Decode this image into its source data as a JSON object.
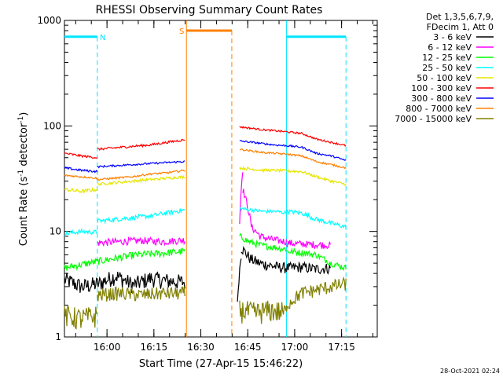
{
  "chart_data": {
    "type": "line",
    "title": "RHESSI Observing Summary Count Rates",
    "xlabel": "Start Time (27-Apr-15 15:46:22)",
    "ylabel_main": "Count Rate (s",
    "ylabel_sup1": "-1",
    "ylabel_mid": " detector",
    "ylabel_sup2": "-1",
    "ylabel_end": ")",
    "yscale": "log",
    "ylim": [
      1,
      1000
    ],
    "xlim_min": [
      0,
      100
    ],
    "x_ticks": [
      {
        "t": 13.6,
        "label": "16:00"
      },
      {
        "t": 28.6,
        "label": "16:15"
      },
      {
        "t": 43.6,
        "label": "16:30"
      },
      {
        "t": 58.6,
        "label": "16:45"
      },
      {
        "t": 73.6,
        "label": "17:00"
      },
      {
        "t": 88.6,
        "label": "17:15"
      }
    ],
    "y_ticks": [
      {
        "v": 1,
        "label": "1"
      },
      {
        "v": 10,
        "label": "10"
      },
      {
        "v": 100,
        "label": "100"
      },
      {
        "v": 1000,
        "label": "1000"
      }
    ],
    "legend_header": [
      "Det 1,3,5,6,7,9,",
      "FDecim 1, Att 0"
    ],
    "series": [
      {
        "name": "3 - 6 keV",
        "color": "#000000",
        "segments": [
          {
            "t0": 0,
            "t1": 38.5,
            "vals": [
              3.5,
              3.0,
              3.2,
              3.8,
              3.1,
              3.6,
              3.4,
              3.3
            ],
            "noise": 0.18
          },
          {
            "t0": 55.3,
            "t1": 56.5,
            "vals": [
              2.0,
              6.0
            ],
            "noise": 0.1
          },
          {
            "t0": 56.5,
            "t1": 71.0,
            "vals": [
              7.0,
              5.5,
              5.0,
              4.8,
              4.6,
              4.5
            ],
            "noise": 0.12
          },
          {
            "t0": 71.0,
            "t1": 85.0,
            "vals": [
              4.5,
              4.6,
              4.4,
              4.5
            ],
            "noise": 0.12
          }
        ]
      },
      {
        "name": "6 - 12 keV",
        "color": "#ff00ff",
        "segments": [
          {
            "t0": 10.5,
            "t1": 38.5,
            "vals": [
              7.8,
              8.0,
              8.2,
              8.0,
              8.3
            ],
            "noise": 0.08
          },
          {
            "t0": 56.0,
            "t1": 57.0,
            "vals": [
              12,
              38
            ],
            "noise": 0.05
          },
          {
            "t0": 57.0,
            "t1": 71.0,
            "vals": [
              25,
              11,
              9,
              8.5,
              8.2,
              8.0
            ],
            "noise": 0.08
          },
          {
            "t0": 71.0,
            "t1": 85.0,
            "vals": [
              7.8,
              7.6,
              7.5,
              7.4
            ],
            "noise": 0.08
          }
        ]
      },
      {
        "name": "12 - 25 keV",
        "color": "#00ff00",
        "segments": [
          {
            "t0": 0,
            "t1": 38.5,
            "vals": [
              4.5,
              5.0,
              5.5,
              6.0,
              6.2,
              6.5
            ],
            "noise": 0.08
          },
          {
            "t0": 56.0,
            "t1": 71.0,
            "vals": [
              9,
              8,
              7.5,
              7.2,
              7.0,
              6.8
            ],
            "noise": 0.07
          },
          {
            "t0": 71.0,
            "t1": 90.0,
            "vals": [
              6.5,
              6.3,
              6.0,
              5.0,
              4.5
            ],
            "noise": 0.07
          }
        ]
      },
      {
        "name": "25 - 50 keV",
        "color": "#00ffff",
        "segments": [
          {
            "t0": 0,
            "t1": 10.5,
            "vals": [
              9.5,
              10,
              9.8
            ],
            "noise": 0.05
          },
          {
            "t0": 10.5,
            "t1": 38.5,
            "vals": [
              12.5,
              13,
              13.5,
              14,
              15,
              16
            ],
            "noise": 0.05
          },
          {
            "t0": 56.0,
            "t1": 71.0,
            "vals": [
              16.5,
              16,
              15.5,
              15.5,
              15.0
            ],
            "noise": 0.04
          },
          {
            "t0": 71.0,
            "t1": 90.0,
            "vals": [
              15.5,
              15.0,
              13.0,
              12.0,
              11.0
            ],
            "noise": 0.05
          }
        ]
      },
      {
        "name": "50 - 100 keV",
        "color": "#e6e600",
        "segments": [
          {
            "t0": 0,
            "t1": 10.5,
            "vals": [
              25,
              24,
              25
            ],
            "noise": 0.04
          },
          {
            "t0": 10.5,
            "t1": 38.5,
            "vals": [
              28,
              29,
              30,
              31,
              32,
              33
            ],
            "noise": 0.03
          },
          {
            "t0": 56.0,
            "t1": 71.0,
            "vals": [
              40,
              39,
              38,
              38,
              37.5
            ],
            "noise": 0.03
          },
          {
            "t0": 71.0,
            "t1": 90.0,
            "vals": [
              37.5,
              37,
              33,
              30,
              28
            ],
            "noise": 0.03
          }
        ]
      },
      {
        "name": "100 - 300 keV",
        "color": "#ff0000",
        "segments": [
          {
            "t0": 0,
            "t1": 10.5,
            "vals": [
              55,
              52,
              50
            ],
            "noise": 0.025
          },
          {
            "t0": 10.5,
            "t1": 38.5,
            "vals": [
              60,
              62,
              64,
              66,
              70,
              74
            ],
            "noise": 0.025
          },
          {
            "t0": 56.0,
            "t1": 71.0,
            "vals": [
              98,
              95,
              92,
              90,
              88
            ],
            "noise": 0.02
          },
          {
            "t0": 71.0,
            "t1": 90.0,
            "vals": [
              88,
              85,
              75,
              70,
              65
            ],
            "noise": 0.02
          }
        ]
      },
      {
        "name": "300 - 800 keV",
        "color": "#0000ff",
        "segments": [
          {
            "t0": 0,
            "t1": 10.5,
            "vals": [
              40,
              38,
              37
            ],
            "noise": 0.025
          },
          {
            "t0": 10.5,
            "t1": 38.5,
            "vals": [
              41,
              42,
              43,
              44,
              45,
              46
            ],
            "noise": 0.02
          },
          {
            "t0": 56.0,
            "t1": 71.0,
            "vals": [
              72,
              70,
              68,
              66,
              65
            ],
            "noise": 0.02
          },
          {
            "t0": 71.0,
            "t1": 90.0,
            "vals": [
              65,
              63,
              55,
              52,
              47
            ],
            "noise": 0.02
          }
        ]
      },
      {
        "name": "800 - 7000 keV",
        "color": "#ff8000",
        "segments": [
          {
            "t0": 0,
            "t1": 10.5,
            "vals": [
              34,
              33,
              32
            ],
            "noise": 0.02
          },
          {
            "t0": 10.5,
            "t1": 38.5,
            "vals": [
              31,
              32,
              33,
              35,
              36,
              38
            ],
            "noise": 0.02
          },
          {
            "t0": 56.0,
            "t1": 71.0,
            "vals": [
              60,
              58,
              56,
              55,
              54
            ],
            "noise": 0.02
          },
          {
            "t0": 71.0,
            "t1": 90.0,
            "vals": [
              54,
              52,
              46,
              43,
              40
            ],
            "noise": 0.02
          }
        ]
      },
      {
        "name": "7000 - 15000 keV",
        "color": "#808000",
        "segments": [
          {
            "t0": 0,
            "t1": 10.5,
            "vals": [
              1.6,
              1.5,
              1.6
            ],
            "noise": 0.25
          },
          {
            "t0": 10.5,
            "t1": 38.5,
            "vals": [
              2.5,
              2.6,
              2.5,
              2.6,
              2.6
            ],
            "noise": 0.15
          },
          {
            "t0": 56.0,
            "t1": 71.0,
            "vals": [
              1.8,
              1.7,
              1.8,
              1.7
            ],
            "noise": 0.25
          },
          {
            "t0": 71.0,
            "t1": 90.0,
            "vals": [
              2.0,
              2.6,
              2.8,
              3.0,
              3.2
            ],
            "noise": 0.15
          }
        ]
      }
    ],
    "intervals": [
      {
        "label": "N",
        "color": "#00e5ff",
        "bar_y": 700,
        "solid_t": [
          0,
          10.5
        ],
        "dashed_t": 10.5
      },
      {
        "label": "",
        "color": "#00e5ff",
        "bar_y": 700,
        "solid_t": [
          71.0,
          90.0
        ],
        "dashed_t": 90.0
      },
      {
        "label": "S",
        "color": "#ff8000",
        "bar_y": 800,
        "solid_t": [
          39.0,
          53.5
        ],
        "dashed_t": 53.5
      }
    ],
    "timestamp": "28-Oct-2021 02:24"
  }
}
